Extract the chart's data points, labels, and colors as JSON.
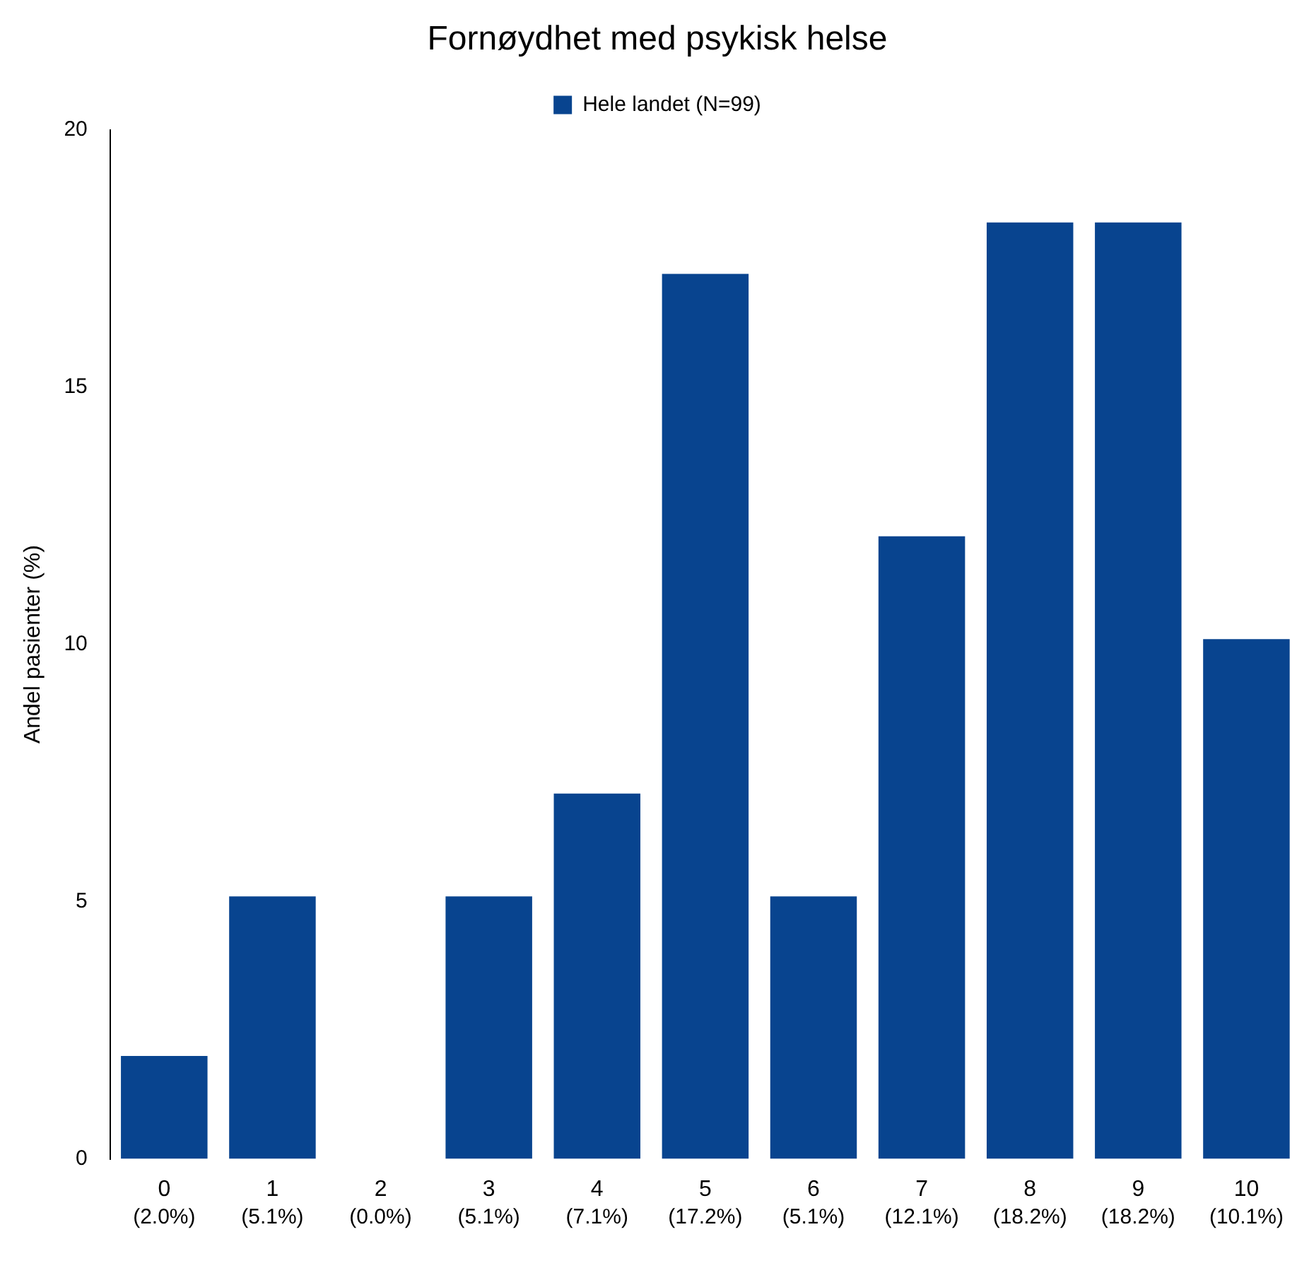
{
  "chart_data": {
    "type": "bar",
    "title": "Fornøydhet med psykisk helse",
    "ylabel": "Andel pasienter (%)",
    "categories": [
      "0",
      "1",
      "2",
      "3",
      "4",
      "5",
      "6",
      "7",
      "8",
      "9",
      "10"
    ],
    "series": [
      {
        "name": "Hele landet (N=99)",
        "color": "#08448f",
        "values": [
          2.0,
          5.1,
          0.0,
          5.1,
          7.1,
          17.2,
          5.1,
          12.1,
          18.2,
          18.2,
          10.1
        ],
        "value_labels": [
          "(2.0%)",
          "(5.1%)",
          "(0.0%)",
          "(5.1%)",
          "(7.1%)",
          "(17.2%)",
          "(5.1%)",
          "(12.1%)",
          "(18.2%)",
          "(18.2%)",
          "(10.1%)"
        ]
      }
    ],
    "ylim": [
      0,
      20
    ],
    "yticks": [
      0,
      5,
      10,
      15,
      20
    ],
    "grid": false,
    "legend": "top"
  }
}
